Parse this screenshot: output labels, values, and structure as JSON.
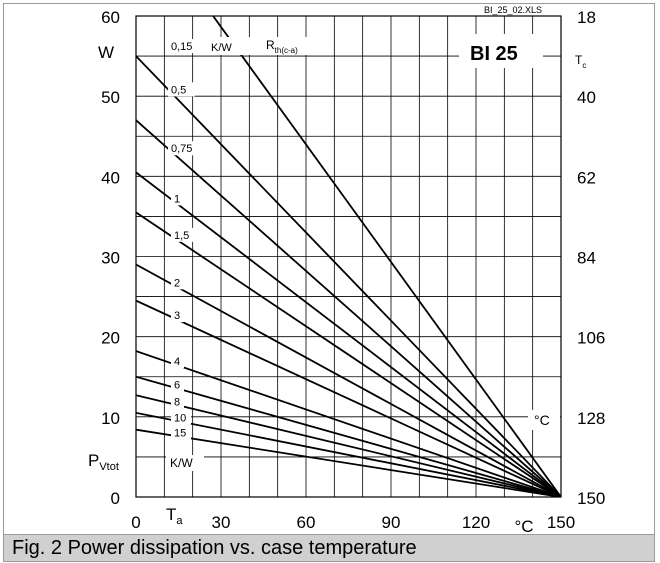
{
  "caption": "Fig. 2 Power dissipation vs. case temperature",
  "chart_data": {
    "type": "line",
    "title": "BI 25",
    "file_label": "BI_25_02.XLS",
    "x_axis": {
      "label": "T",
      "label_sub": "a",
      "unit": "°C",
      "range": [
        0,
        150
      ],
      "tick_values": [
        0,
        30,
        60,
        90,
        120,
        150
      ],
      "tick_labels": [
        "0",
        "30",
        "60",
        "90",
        "120",
        "150"
      ]
    },
    "y_axis": {
      "label": "P",
      "label_sub": "Vtot",
      "unit": "W",
      "range": [
        0,
        60
      ],
      "tick_values": [
        0,
        10,
        20,
        30,
        40,
        50,
        60
      ],
      "tick_labels": [
        "0",
        "10",
        "20",
        "30",
        "40",
        "50",
        "60"
      ]
    },
    "y2_axis": {
      "label": "T",
      "label_sub": "c",
      "unit": "°C",
      "tick_values": [
        0,
        10,
        20,
        30,
        40,
        50,
        60
      ],
      "tick_labels": [
        "150",
        "128",
        "106",
        "84",
        "62",
        "40",
        "18"
      ]
    },
    "series_header": {
      "label": "R",
      "label_sub": "th(c-a)",
      "unit": "K/W"
    },
    "series_unit_bottom": "K/W",
    "series": [
      {
        "name": "0,15",
        "x": [
          0,
          150
        ],
        "y": [
          73.3,
          0
        ]
      },
      {
        "name": "0,5",
        "x": [
          0,
          150
        ],
        "y": [
          55.0,
          0
        ]
      },
      {
        "name": "0,75",
        "x": [
          0,
          150
        ],
        "y": [
          47.0,
          0
        ]
      },
      {
        "name": "1",
        "x": [
          0,
          150
        ],
        "y": [
          40.5,
          0
        ]
      },
      {
        "name": "1,5",
        "x": [
          0,
          150
        ],
        "y": [
          35.5,
          0
        ]
      },
      {
        "name": "2",
        "x": [
          0,
          150
        ],
        "y": [
          29.0,
          0
        ]
      },
      {
        "name": "3",
        "x": [
          0,
          150
        ],
        "y": [
          24.5,
          0
        ]
      },
      {
        "name": "4",
        "x": [
          0,
          150
        ],
        "y": [
          18.2,
          0
        ]
      },
      {
        "name": "6",
        "x": [
          0,
          150
        ],
        "y": [
          15.0,
          0
        ]
      },
      {
        "name": "8",
        "x": [
          0,
          150
        ],
        "y": [
          12.7,
          0
        ]
      },
      {
        "name": "10",
        "x": [
          0,
          150
        ],
        "y": [
          10.5,
          0
        ]
      },
      {
        "name": "15",
        "x": [
          0,
          150
        ],
        "y": [
          8.4,
          0
        ]
      }
    ],
    "grid": true,
    "x_minor_step": 10,
    "y_minor_step": 5
  }
}
